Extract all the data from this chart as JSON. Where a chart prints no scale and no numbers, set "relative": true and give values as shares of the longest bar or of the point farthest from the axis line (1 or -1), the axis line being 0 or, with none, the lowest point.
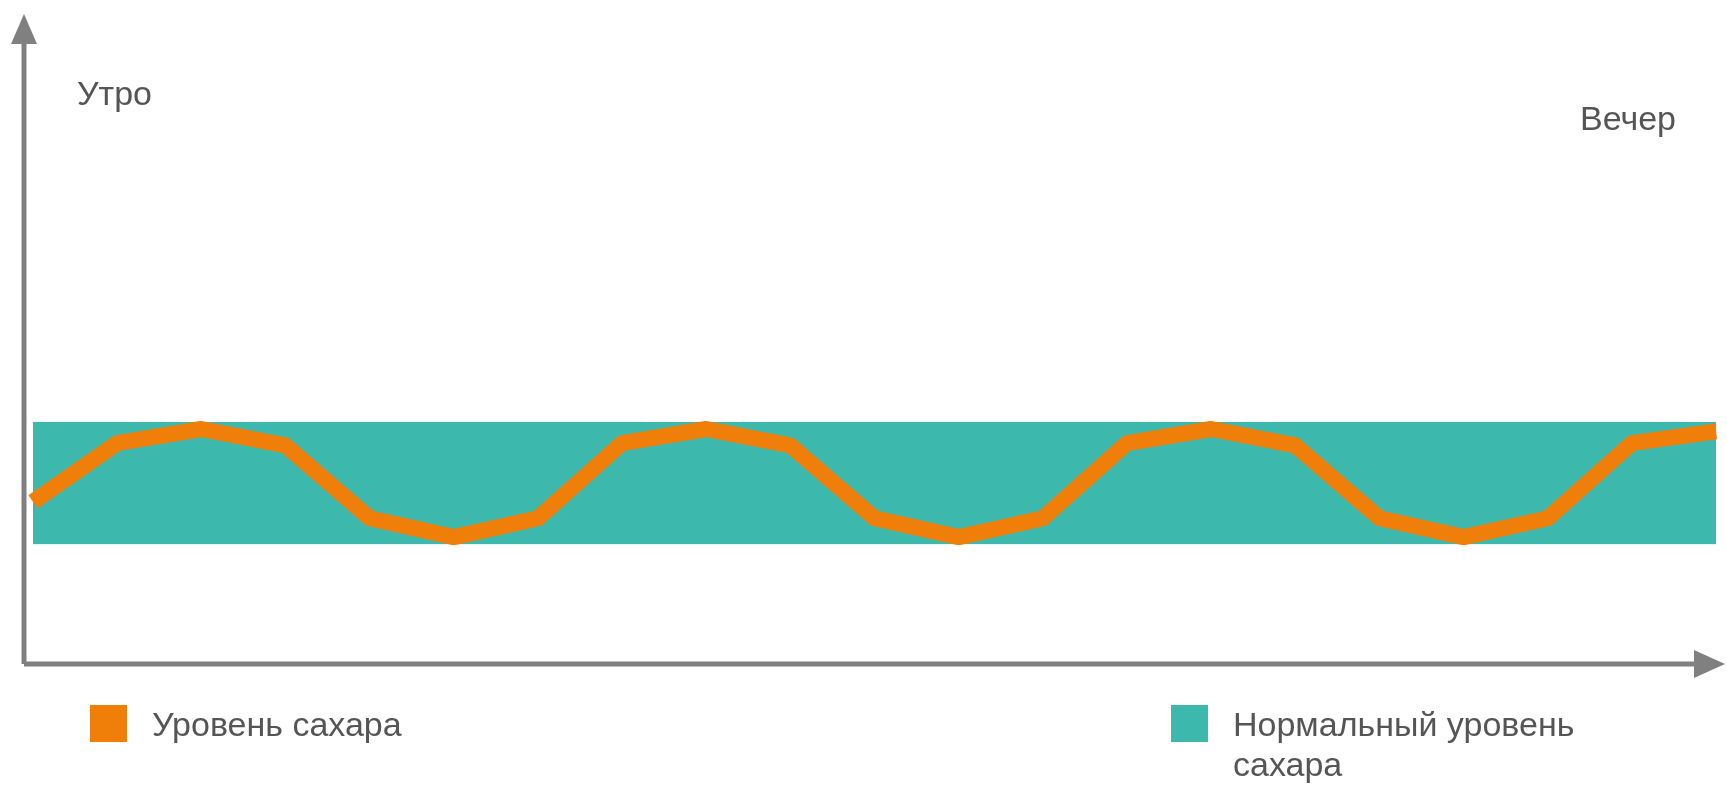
{
  "chart_data": {
    "type": "line",
    "relative": true,
    "categories": [
      null,
      null,
      null,
      null,
      null,
      null,
      null,
      null,
      null,
      null,
      null,
      null,
      null,
      null,
      null,
      null,
      null,
      null,
      null,
      null,
      null
    ],
    "series": [
      {
        "name": "Уровень сахара",
        "color": "#f07f09",
        "values": [
          0.69,
          0.94,
          1,
          0.93,
          0.62,
          0.54,
          0.62,
          0.94,
          1,
          0.93,
          0.62,
          0.54,
          0.62,
          0.94,
          1,
          0.93,
          0.62,
          0.54,
          0.62,
          0.94,
          0.99
        ]
      }
    ],
    "bands": [
      {
        "axis": "y",
        "from": 0.51,
        "to": 1.03,
        "label": "Нормальный уровень сахара",
        "color": "#3cb8ad"
      }
    ],
    "annotations": [
      "Утро",
      "Вечер"
    ],
    "legend": "bottom"
  }
}
